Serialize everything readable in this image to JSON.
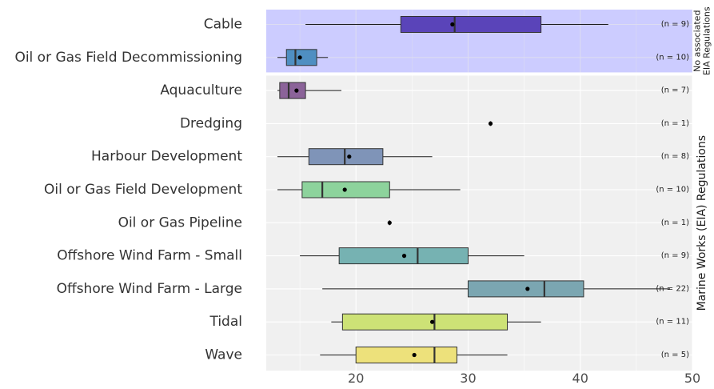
{
  "chart_data": {
    "type": "boxplot",
    "orientation": "horizontal",
    "title": "",
    "xlabel": "",
    "ylabel": "",
    "xlim": [
      12.0,
      50.0
    ],
    "x_ticks": [
      20,
      30,
      40,
      50
    ],
    "grid": true,
    "panels": [
      {
        "name": "No associated EIA Regulations",
        "label_lines": [
          "No associated",
          "EIA Regulations"
        ],
        "background": "#ccccff",
        "categories": [
          {
            "label": "Cable",
            "n": "(n = 9)",
            "color": "#5a44b9",
            "min": 15.5,
            "q1": 24.0,
            "median": 28.8,
            "q3": 36.5,
            "max": 42.5,
            "mean": 28.6
          },
          {
            "label": "Oil or Gas Field Decommissioning",
            "n": "(n = 10)",
            "color": "#4f8fc2",
            "min": 13.0,
            "q1": 13.8,
            "median": 14.6,
            "q3": 16.5,
            "max": 17.5,
            "mean": 15.0
          }
        ]
      },
      {
        "name": "Marine Works (EIA) Regulations",
        "label_lines": [
          "Marine Works (EIA) Regulations"
        ],
        "background": "#f0f0f0",
        "categories": [
          {
            "label": "Aquaculture",
            "n": "(n = 7)",
            "color": "#8b6399",
            "min": 13.0,
            "q1": 13.2,
            "median": 14.0,
            "q3": 15.5,
            "max": 18.7,
            "mean": 14.7
          },
          {
            "label": "Dredging",
            "n": "(n = 1)",
            "color": "#7a7a7a",
            "min": 32.0,
            "q1": 32.0,
            "median": 32.0,
            "q3": 32.0,
            "max": 32.0,
            "mean": 32.0
          },
          {
            "label": "Harbour Development",
            "n": "(n = 8)",
            "color": "#7f94b8",
            "min": 13.0,
            "q1": 15.8,
            "median": 19.0,
            "q3": 22.4,
            "max": 26.8,
            "mean": 19.4
          },
          {
            "label": "Oil or Gas Field Development",
            "n": "(n = 10)",
            "color": "#8dd39c",
            "min": 13.0,
            "q1": 15.2,
            "median": 17.0,
            "q3": 23.0,
            "max": 29.3,
            "mean": 19.0
          },
          {
            "label": "Oil or Gas Pipeline",
            "n": "(n = 1)",
            "color": "#7a7a7a",
            "min": 23.0,
            "q1": 23.0,
            "median": 23.0,
            "q3": 23.0,
            "max": 23.0,
            "mean": 23.0
          },
          {
            "label": "Offshore Wind Farm - Small",
            "n": "(n = 9)",
            "color": "#76b2b2",
            "min": 15.0,
            "q1": 18.5,
            "median": 25.5,
            "q3": 30.0,
            "max": 35.0,
            "mean": 24.3
          },
          {
            "label": "Offshore Wind Farm - Large",
            "n": "(n = 22)",
            "color": "#7ba6b1",
            "min": 17.0,
            "q1": 30.0,
            "median": 36.8,
            "q3": 40.3,
            "max": 48.0,
            "mean": 35.3
          },
          {
            "label": "Tidal",
            "n": "(n = 11)",
            "color": "#cde276",
            "min": 17.8,
            "q1": 18.8,
            "median": 27.0,
            "q3": 33.5,
            "max": 36.5,
            "mean": 26.8
          },
          {
            "label": "Wave",
            "n": "(n = 5)",
            "color": "#ede17b",
            "min": 16.8,
            "q1": 20.0,
            "median": 27.0,
            "q3": 29.0,
            "max": 33.5,
            "mean": 25.2
          }
        ]
      }
    ]
  }
}
